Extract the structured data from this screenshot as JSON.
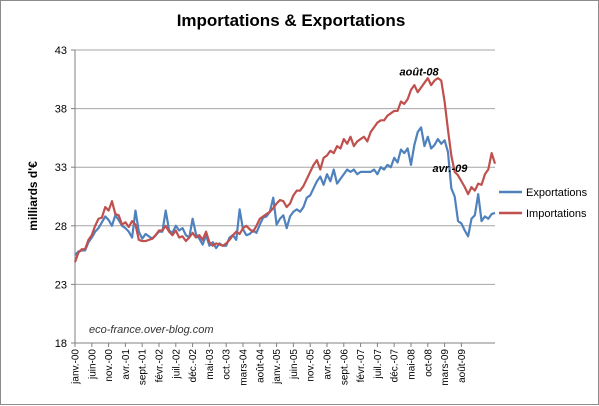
{
  "chart_data": {
    "type": "line",
    "title": "Importations & Exportations",
    "ylabel": "milliards d'€",
    "xlabel": "",
    "ylim": [
      18,
      43
    ],
    "yticks": [
      18,
      23,
      28,
      33,
      38,
      43
    ],
    "grid": true,
    "legend_position": "right",
    "x_start": "janv.-00",
    "x_labels": [
      "janv.-00",
      "juin-00",
      "nov.-00",
      "avr.-01",
      "sept.-01",
      "févr.-02",
      "juil.-02",
      "déc.-02",
      "mai-03",
      "oct.-03",
      "mars-04",
      "août-04",
      "janv.-05",
      "juin-05",
      "nov.-05",
      "avr.-06",
      "sept.-06",
      "févr.-07",
      "juil.-07",
      "déc.-07",
      "mai-08",
      "oct-08",
      "mars-09",
      "août-09"
    ],
    "colors": {
      "Exportations": "#4f81bd",
      "Importations": "#c0504d"
    },
    "series": [
      {
        "name": "Exportations",
        "values": [
          25.5,
          25.8,
          25.9,
          25.9,
          26.6,
          27.0,
          27.5,
          27.8,
          28.3,
          28.8,
          28.5,
          28.0,
          28.9,
          28.5,
          28.0,
          27.8,
          27.5,
          27.0,
          29.3,
          27.5,
          26.9,
          27.3,
          27.1,
          26.9,
          27.2,
          27.5,
          27.5,
          29.3,
          27.6,
          27.4,
          28.0,
          27.6,
          27.8,
          27.2,
          27.0,
          28.6,
          27.3,
          26.9,
          26.4,
          27.2,
          26.3,
          26.6,
          26.1,
          26.5,
          26.3,
          26.3,
          27.0,
          27.2,
          26.8,
          29.4,
          27.7,
          27.2,
          27.3,
          27.6,
          27.4,
          28.1,
          28.7,
          28.8,
          29.2,
          30.4,
          28.1,
          28.6,
          28.9,
          27.8,
          28.8,
          29.2,
          29.4,
          29.2,
          29.6,
          30.4,
          30.6,
          31.2,
          31.8,
          32.2,
          31.5,
          32.4,
          31.8,
          32.8,
          31.6,
          32.0,
          32.4,
          32.8,
          32.6,
          32.8,
          32.4,
          32.6,
          32.6,
          32.6,
          32.6,
          32.8,
          32.4,
          33.0,
          32.8,
          33.2,
          33.0,
          33.8,
          33.4,
          34.5,
          34.2,
          34.6,
          33.2,
          34.9,
          36.0,
          36.4,
          34.8,
          35.6,
          34.6,
          34.9,
          35.4,
          35.0,
          35.3,
          34.3,
          31.2,
          30.5,
          28.4,
          28.2,
          27.6,
          27.1,
          28.6,
          28.9,
          30.7,
          28.4,
          28.8,
          28.6,
          29.0,
          29.1
        ]
      },
      {
        "name": "Importations",
        "values": [
          24.9,
          25.7,
          26.0,
          26.0,
          26.8,
          27.2,
          28.0,
          28.6,
          28.7,
          29.6,
          29.3,
          30.1,
          29.0,
          28.9,
          28.1,
          28.3,
          27.9,
          28.4,
          28.1,
          26.8,
          26.7,
          26.7,
          26.8,
          26.9,
          27.2,
          27.6,
          27.6,
          28.0,
          27.5,
          27.2,
          27.6,
          27.0,
          27.1,
          26.7,
          27.0,
          27.4,
          27.0,
          27.2,
          26.8,
          27.5,
          26.6,
          26.3,
          26.5,
          26.4,
          26.3,
          26.5,
          26.8,
          27.2,
          27.5,
          27.3,
          27.8,
          28.0,
          27.7,
          27.5,
          28.0,
          28.6,
          28.8,
          29.0,
          29.2,
          29.5,
          29.9,
          30.2,
          30.1,
          29.6,
          29.9,
          30.6,
          31.0,
          31.0,
          31.4,
          32.0,
          32.6,
          33.2,
          33.6,
          32.8,
          33.8,
          34.0,
          34.4,
          34.2,
          34.8,
          34.6,
          35.4,
          35.0,
          35.6,
          34.8,
          35.2,
          35.4,
          35.6,
          35.2,
          36.0,
          36.4,
          36.8,
          37.0,
          37.0,
          37.4,
          37.6,
          37.8,
          37.8,
          38.6,
          38.4,
          38.8,
          39.6,
          40.0,
          39.4,
          39.8,
          40.2,
          40.6,
          40.0,
          40.4,
          40.6,
          40.4,
          38.6,
          36.2,
          34.0,
          32.6,
          32.3,
          31.8,
          31.3,
          30.7,
          31.3,
          31.0,
          31.6,
          31.5,
          32.4,
          32.8,
          34.2,
          33.3
        ]
      }
    ],
    "annotations": [
      {
        "text": "août-08",
        "series": "Importations",
        "index": 103
      },
      {
        "text": "avr.-09",
        "series": "Exportations",
        "index": 111
      }
    ],
    "watermark": "eco-france.over-blog.com"
  }
}
